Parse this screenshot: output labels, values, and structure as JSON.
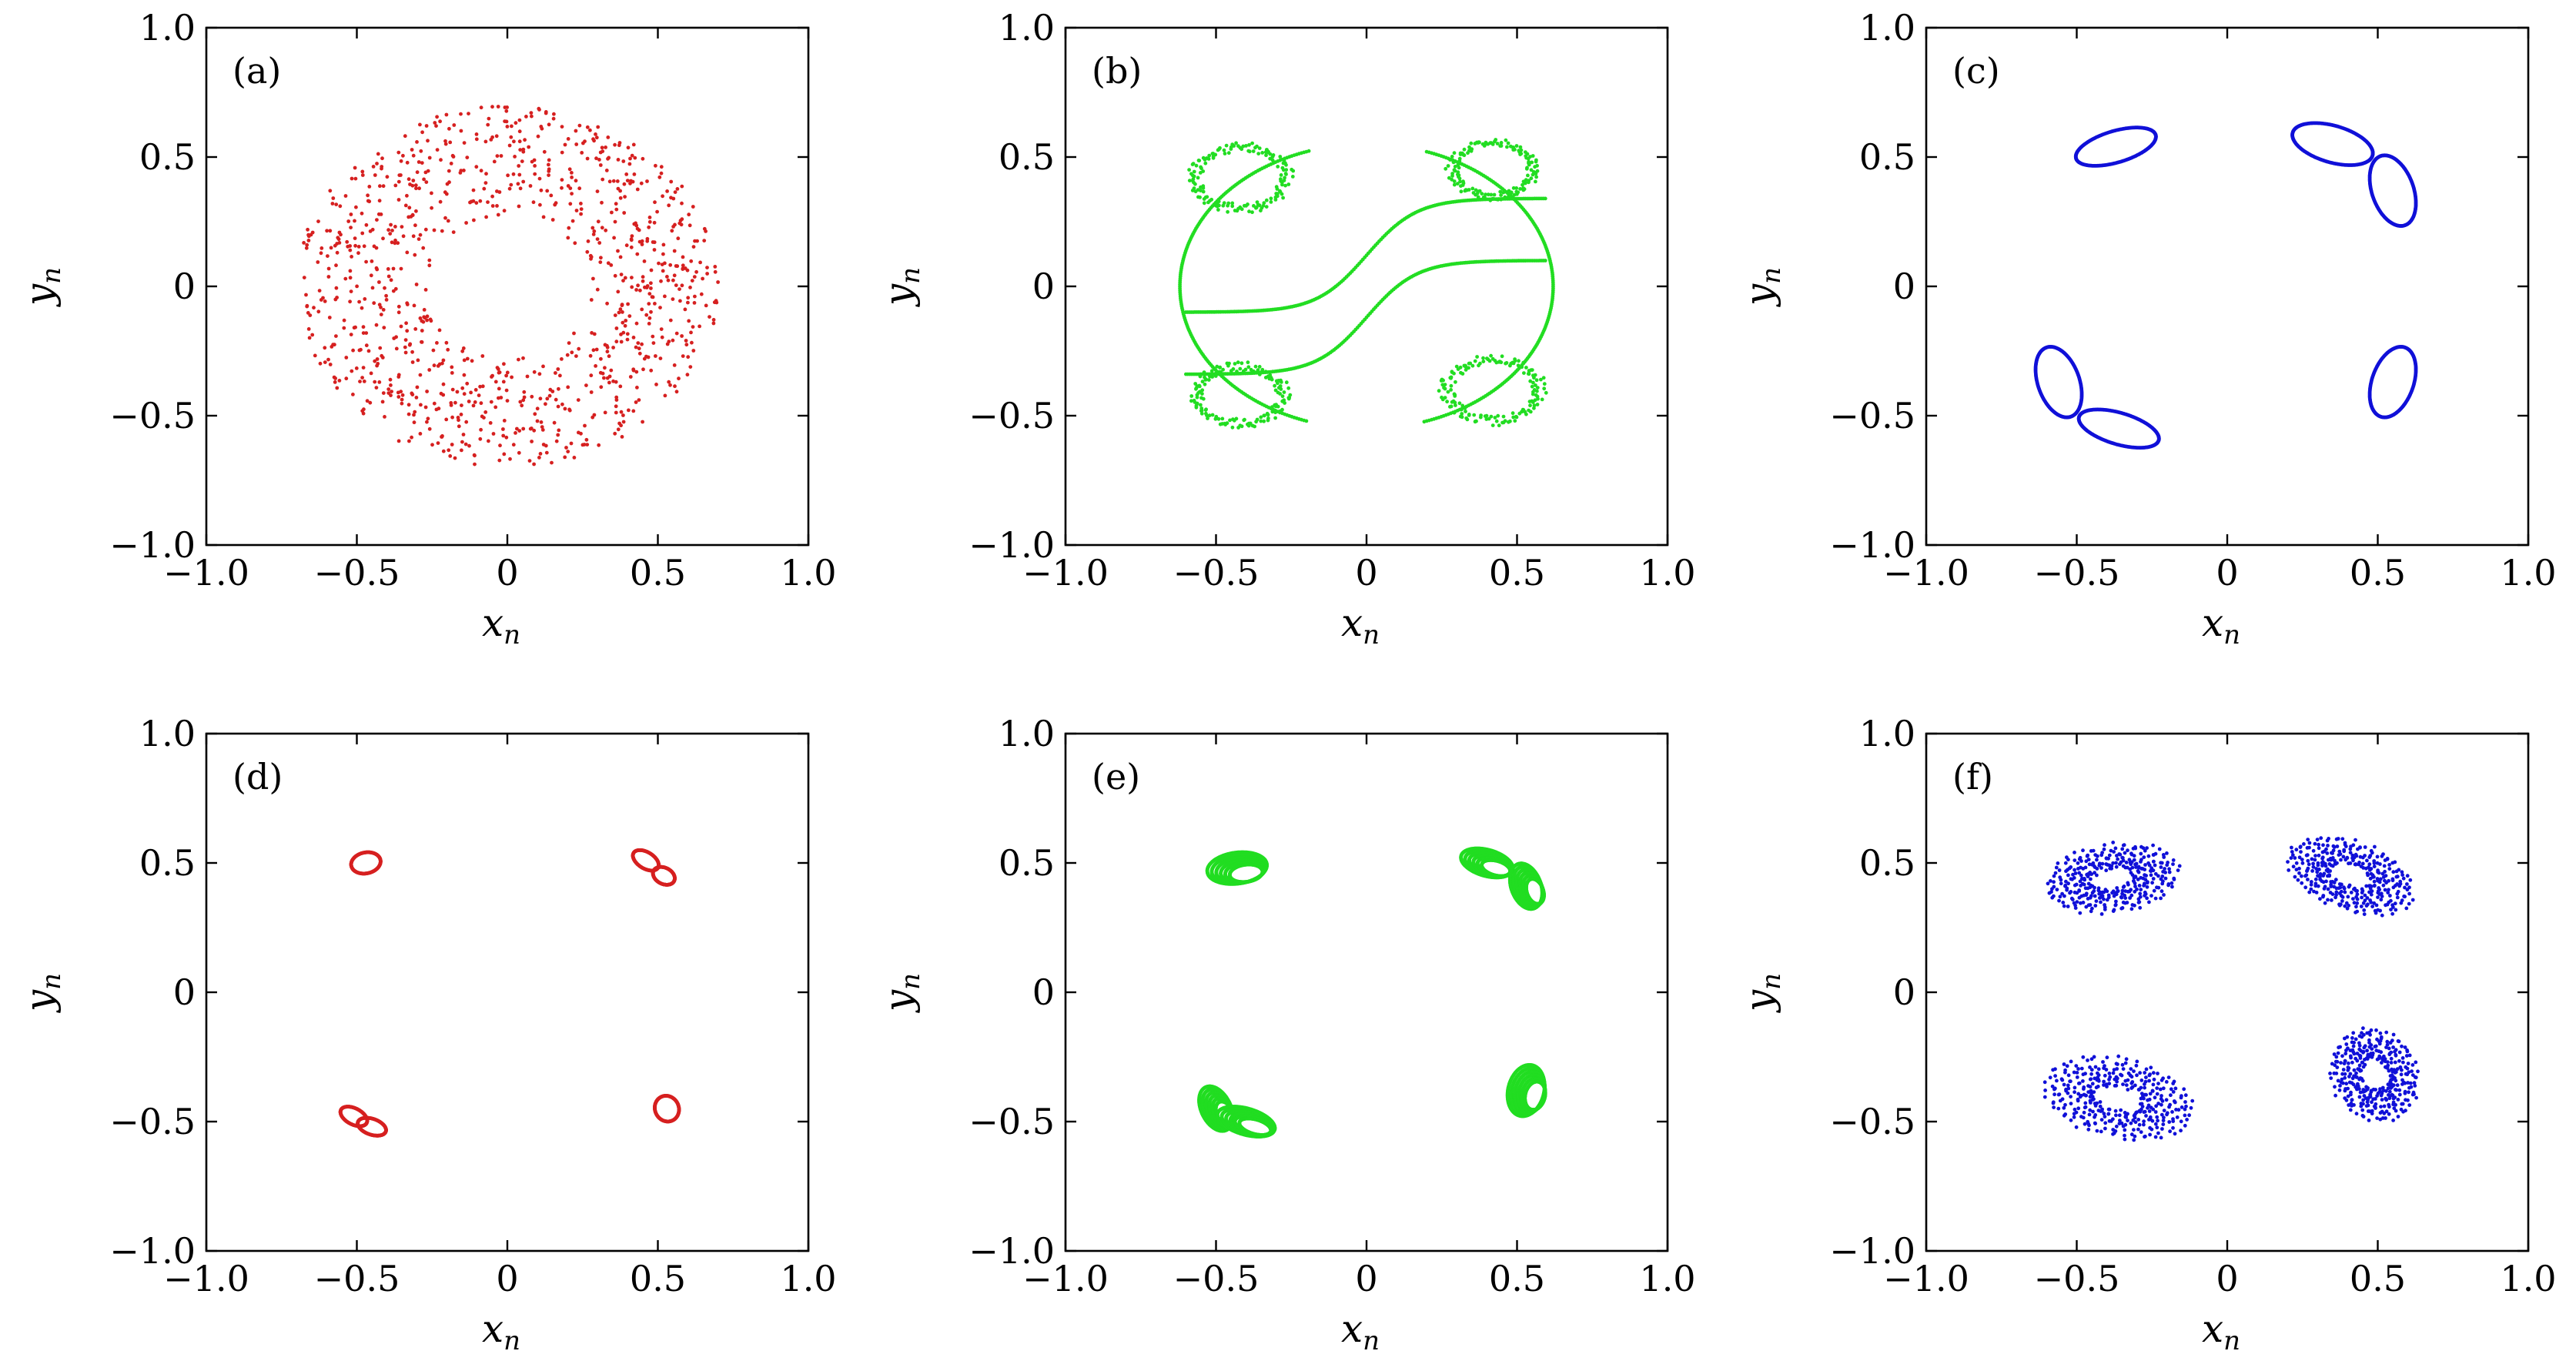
{
  "chart_data": [
    {
      "type": "scatter",
      "panel_label": "(a)",
      "xlabel": "x",
      "xlabel_sub": "n",
      "ylabel": "y",
      "ylabel_sub": "n",
      "xlim": [
        -1.0,
        1.0
      ],
      "ylim": [
        -1.0,
        1.0
      ],
      "xticks": [
        "−1.0",
        "−0.5",
        "0",
        "0.5",
        "1.0"
      ],
      "yticks": [
        "−1.0",
        "−0.5",
        "0",
        "0.5",
        "1.0"
      ],
      "series": [
        {
          "color": "#d62020",
          "marker": "dot",
          "shape": "filled-disk",
          "center": [
            0.0,
            0.0
          ],
          "radius": 0.7,
          "approx_points": 1000
        }
      ]
    },
    {
      "type": "scatter",
      "panel_label": "(b)",
      "xlabel": "x",
      "xlabel_sub": "n",
      "ylabel": "y",
      "ylabel_sub": "n",
      "xlim": [
        -1.0,
        1.0
      ],
      "ylim": [
        -1.0,
        1.0
      ],
      "xticks": [
        "−1.0",
        "−0.5",
        "0",
        "0.5",
        "1.0"
      ],
      "yticks": [
        "−1.0",
        "−0.5",
        "0",
        "0.5",
        "1.0"
      ],
      "series": [
        {
          "color": "#22dd22",
          "marker": "dot",
          "shape": "invariant-curves",
          "x_range": [
            -0.63,
            0.65
          ],
          "y_range": [
            -0.63,
            0.65
          ],
          "approx_points": 1400
        }
      ]
    },
    {
      "type": "scatter",
      "panel_label": "(c)",
      "xlabel": "x",
      "xlabel_sub": "n",
      "ylabel": "y",
      "ylabel_sub": "n",
      "xlim": [
        -1.0,
        1.0
      ],
      "ylim": [
        -1.0,
        1.0
      ],
      "xticks": [
        "−1.0",
        "−0.5",
        "0",
        "0.5",
        "1.0"
      ],
      "yticks": [
        "−1.0",
        "−0.5",
        "0",
        "0.5",
        "1.0"
      ],
      "series": [
        {
          "color": "#1010d8",
          "marker": "dot",
          "shape": "ellipses",
          "ellipses": [
            {
              "cx": -0.37,
              "cy": 0.54,
              "rx": 0.14,
              "ry": 0.06,
              "angle": 20
            },
            {
              "cx": 0.35,
              "cy": 0.55,
              "rx": 0.14,
              "ry": 0.07,
              "angle": -20
            },
            {
              "cx": 0.55,
              "cy": 0.37,
              "rx": 0.07,
              "ry": 0.14,
              "angle": 15
            },
            {
              "cx": -0.56,
              "cy": -0.37,
              "rx": 0.07,
              "ry": 0.14,
              "angle": 15
            },
            {
              "cx": -0.36,
              "cy": -0.55,
              "rx": 0.14,
              "ry": 0.06,
              "angle": -20
            },
            {
              "cx": 0.55,
              "cy": -0.37,
              "rx": 0.07,
              "ry": 0.14,
              "angle": -15
            }
          ]
        }
      ]
    },
    {
      "type": "scatter",
      "panel_label": "(d)",
      "xlabel": "x",
      "xlabel_sub": "n",
      "ylabel": "y",
      "ylabel_sub": "n",
      "xlim": [
        -1.0,
        1.0
      ],
      "ylim": [
        -1.0,
        1.0
      ],
      "xticks": [
        "−1.0",
        "−0.5",
        "0",
        "0.5",
        "1.0"
      ],
      "yticks": [
        "−1.0",
        "−0.5",
        "0",
        "0.5",
        "1.0"
      ],
      "series": [
        {
          "color": "#d62020",
          "marker": "dot",
          "shape": "small-loops",
          "ellipses": [
            {
              "cx": -0.47,
              "cy": 0.5,
              "rx": 0.05,
              "ry": 0.04,
              "angle": 20
            },
            {
              "cx": 0.46,
              "cy": 0.51,
              "rx": 0.05,
              "ry": 0.03,
              "angle": -40
            },
            {
              "cx": 0.52,
              "cy": 0.45,
              "rx": 0.04,
              "ry": 0.03,
              "angle": -40
            },
            {
              "cx": 0.53,
              "cy": -0.45,
              "rx": 0.04,
              "ry": 0.05,
              "angle": 10
            },
            {
              "cx": -0.51,
              "cy": -0.48,
              "rx": 0.05,
              "ry": 0.03,
              "angle": -35
            },
            {
              "cx": -0.45,
              "cy": -0.52,
              "rx": 0.05,
              "ry": 0.03,
              "angle": -25
            }
          ]
        }
      ]
    },
    {
      "type": "scatter",
      "panel_label": "(e)",
      "xlabel": "x",
      "xlabel_sub": "n",
      "ylabel": "y",
      "ylabel_sub": "n",
      "xlim": [
        -1.0,
        1.0
      ],
      "ylim": [
        -1.0,
        1.0
      ],
      "xticks": [
        "−1.0",
        "−0.5",
        "0",
        "0.5",
        "1.0"
      ],
      "yticks": [
        "−1.0",
        "−0.5",
        "0",
        "0.5",
        "1.0"
      ],
      "series": [
        {
          "color": "#22dd22",
          "marker": "dot",
          "shape": "tori",
          "ellipses": [
            {
              "cx": -0.43,
              "cy": 0.48,
              "rx": 0.1,
              "ry": 0.06,
              "angle": 10
            },
            {
              "cx": 0.4,
              "cy": 0.5,
              "rx": 0.09,
              "ry": 0.05,
              "angle": -20
            },
            {
              "cx": 0.53,
              "cy": 0.41,
              "rx": 0.05,
              "ry": 0.09,
              "angle": 15
            },
            {
              "cx": 0.53,
              "cy": -0.38,
              "rx": 0.06,
              "ry": 0.1,
              "angle": -10
            },
            {
              "cx": -0.5,
              "cy": -0.45,
              "rx": 0.05,
              "ry": 0.09,
              "angle": 20
            },
            {
              "cx": -0.4,
              "cy": -0.5,
              "rx": 0.1,
              "ry": 0.05,
              "angle": -20
            }
          ]
        }
      ]
    },
    {
      "type": "scatter",
      "panel_label": "(f)",
      "xlabel": "x",
      "xlabel_sub": "n",
      "ylabel": "y",
      "ylabel_sub": "n",
      "xlim": [
        -1.0,
        1.0
      ],
      "ylim": [
        -1.0,
        1.0
      ],
      "xticks": [
        "−1.0",
        "−0.5",
        "0",
        "0.5",
        "1.0"
      ],
      "yticks": [
        "−1.0",
        "−0.5",
        "0",
        "0.5",
        "1.0"
      ],
      "series": [
        {
          "color": "#1010d8",
          "marker": "dot",
          "shape": "dotted-clusters",
          "ellipses": [
            {
              "cx": -0.38,
              "cy": 0.44,
              "rx": 0.22,
              "ry": 0.13,
              "angle": 10
            },
            {
              "cx": 0.41,
              "cy": 0.45,
              "rx": 0.22,
              "ry": 0.13,
              "angle": -25
            },
            {
              "cx": 0.49,
              "cy": -0.32,
              "rx": 0.14,
              "ry": 0.18,
              "angle": 15
            },
            {
              "cx": -0.36,
              "cy": -0.41,
              "rx": 0.25,
              "ry": 0.15,
              "angle": -15
            }
          ]
        }
      ]
    }
  ]
}
